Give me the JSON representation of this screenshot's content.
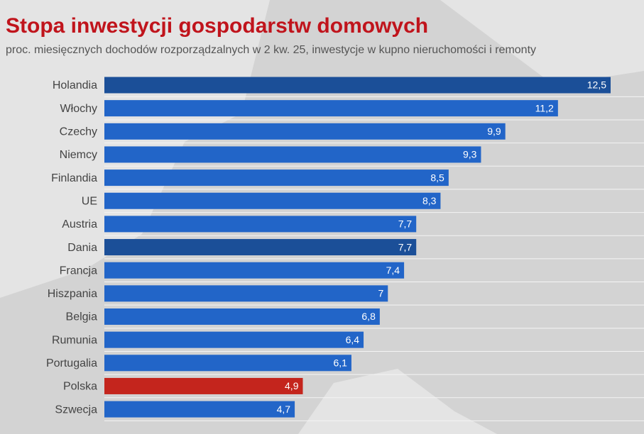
{
  "chart_data": {
    "type": "bar",
    "orientation": "horizontal",
    "title": "Stopa inwestycji gospodarstw domowych",
    "subtitle": "proc. miesięcznych dochodów rozporządzalnych w 2 kw. 25, inwestycje w kupno nieruchomości i remonty",
    "categories": [
      "Holandia",
      "Włochy",
      "Czechy",
      "Niemcy",
      "Finlandia",
      "UE",
      "Austria",
      "Dania",
      "Francja",
      "Hiszpania",
      "Belgia",
      "Rumunia",
      "Portugalia",
      "Polska",
      "Szwecja"
    ],
    "values": [
      12.5,
      11.2,
      9.9,
      9.3,
      8.5,
      8.3,
      7.7,
      7.7,
      7.4,
      7,
      6.8,
      6.4,
      6.1,
      4.9,
      4.7
    ],
    "value_labels": [
      "12,5",
      "11,2",
      "9,9",
      "9,3",
      "8,5",
      "8,3",
      "7,7",
      "7,7",
      "7,4",
      "7",
      "6,8",
      "6,4",
      "6,1",
      "4,9",
      "4,7"
    ],
    "colors": [
      "#1b4f98",
      "#2265c8",
      "#2265c8",
      "#2265c8",
      "#2265c8",
      "#2265c8",
      "#2265c8",
      "#1b4f98",
      "#2265c8",
      "#2265c8",
      "#2265c8",
      "#2265c8",
      "#2265c8",
      "#c4251d",
      "#2265c8"
    ]
  }
}
